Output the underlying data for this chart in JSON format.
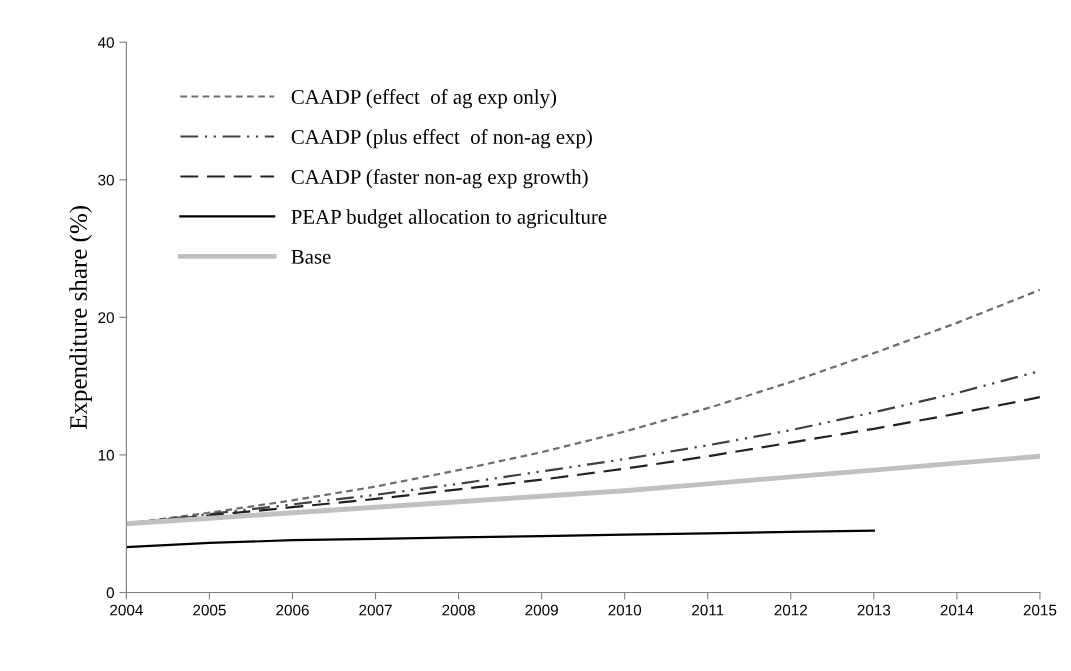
{
  "chart_data": {
    "type": "line",
    "ylabel": "Expenditure share (%)",
    "x": [
      2004,
      2005,
      2006,
      2007,
      2008,
      2009,
      2010,
      2011,
      2012,
      2013,
      2014,
      2015
    ],
    "xlim": [
      2004,
      2015
    ],
    "xticks": [
      2004,
      2005,
      2006,
      2007,
      2008,
      2009,
      2010,
      2011,
      2012,
      2013,
      2014,
      2015
    ],
    "ylim": [
      0,
      40
    ],
    "yticks": [
      0,
      10,
      20,
      30,
      40
    ],
    "grid": false,
    "legend": "top left",
    "series": [
      {
        "name": "CAADP (effect  of ag exp only)",
        "color": "#6e6e6e",
        "line_style": "dotted",
        "values": [
          5.0,
          5.8,
          6.7,
          7.7,
          8.9,
          10.2,
          11.7,
          13.4,
          15.3,
          17.4,
          19.6,
          22.0
        ]
      },
      {
        "name": "CAADP (plus effect  of non-ag exp)",
        "color": "#404040",
        "line_style": "dashdotdot",
        "values": [
          5.0,
          5.7,
          6.4,
          7.1,
          7.9,
          8.8,
          9.7,
          10.7,
          11.8,
          13.1,
          14.5,
          16.1
        ]
      },
      {
        "name": "CAADP (faster non-ag exp growth)",
        "color": "#222222",
        "line_style": "dashed",
        "values": [
          5.0,
          5.6,
          6.2,
          6.8,
          7.5,
          8.2,
          9.0,
          9.9,
          10.9,
          11.9,
          13.0,
          14.2
        ]
      },
      {
        "name": "PEAP budget allocation to agriculture",
        "color": "#000000",
        "line_style": "solid",
        "values": [
          3.3,
          3.6,
          3.8,
          3.9,
          4.0,
          4.1,
          4.2,
          4.3,
          4.4,
          4.5,
          null,
          null
        ]
      },
      {
        "name": "Base",
        "color": "#c0c0c0",
        "line_style": "solid",
        "values": [
          5.0,
          5.4,
          5.8,
          6.2,
          6.6,
          7.0,
          7.4,
          7.9,
          8.4,
          8.9,
          9.4,
          9.9
        ]
      }
    ]
  }
}
